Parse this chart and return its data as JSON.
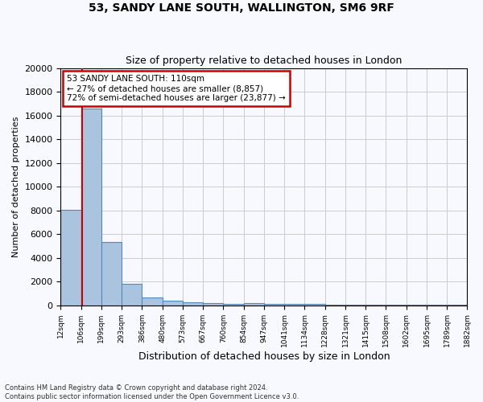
{
  "title": "53, SANDY LANE SOUTH, WALLINGTON, SM6 9RF",
  "subtitle": "Size of property relative to detached houses in London",
  "xlabel": "Distribution of detached houses by size in London",
  "ylabel": "Number of detached properties",
  "bin_edges": [
    12,
    106,
    199,
    293,
    386,
    480,
    573,
    667,
    760,
    854,
    947,
    1041,
    1134,
    1228,
    1321,
    1415,
    1508,
    1602,
    1695,
    1789,
    1882
  ],
  "bin_labels": [
    "12sqm",
    "106sqm",
    "199sqm",
    "293sqm",
    "386sqm",
    "480sqm",
    "573sqm",
    "667sqm",
    "760sqm",
    "854sqm",
    "947sqm",
    "1041sqm",
    "1134sqm",
    "1228sqm",
    "1321sqm",
    "1415sqm",
    "1508sqm",
    "1602sqm",
    "1695sqm",
    "1789sqm",
    "1882sqm"
  ],
  "bar_values": [
    8057,
    16600,
    5300,
    1800,
    650,
    350,
    250,
    150,
    100,
    150,
    130,
    100,
    80,
    60,
    50,
    40,
    30,
    25,
    20,
    15
  ],
  "bar_color": "#aac4e0",
  "bar_edge_color": "#5588bb",
  "property_line_x": 110,
  "annotation_title": "53 SANDY LANE SOUTH: 110sqm",
  "annotation_line1": "← 27% of detached houses are smaller (8,857)",
  "annotation_line2": "72% of semi-detached houses are larger (23,877) →",
  "annotation_box_color": "#ffffff",
  "annotation_box_edge": "#cc0000",
  "vline_color": "#cc0000",
  "ylim": [
    0,
    20000
  ],
  "yticks": [
    0,
    2000,
    4000,
    6000,
    8000,
    10000,
    12000,
    14000,
    16000,
    18000,
    20000
  ],
  "footer_line1": "Contains HM Land Registry data © Crown copyright and database right 2024.",
  "footer_line2": "Contains public sector information licensed under the Open Government Licence v3.0.",
  "bg_color": "#f8f8ff"
}
